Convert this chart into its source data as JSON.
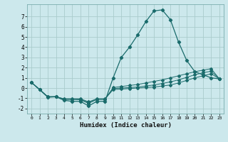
{
  "title": "",
  "xlabel": "Humidex (Indice chaleur)",
  "bg_color": "#cce8ec",
  "grid_color": "#aacccc",
  "line_color": "#1a6b6b",
  "xlim": [
    -0.5,
    23.5
  ],
  "ylim": [
    -2.5,
    8.2
  ],
  "x_ticks": [
    0,
    1,
    2,
    3,
    4,
    5,
    6,
    7,
    8,
    9,
    10,
    11,
    12,
    13,
    14,
    15,
    16,
    17,
    18,
    19,
    20,
    21,
    22,
    23
  ],
  "y_ticks": [
    -2,
    -1,
    0,
    1,
    2,
    3,
    4,
    5,
    6,
    7
  ],
  "line1_x": [
    0,
    1,
    2,
    3,
    4,
    5,
    6,
    7,
    8,
    9,
    10,
    11,
    12,
    13,
    14,
    15,
    16,
    17,
    18,
    19,
    20,
    21,
    22,
    23
  ],
  "line1_y": [
    0.55,
    -0.15,
    -0.9,
    -0.85,
    -1.2,
    -1.3,
    -1.3,
    -1.75,
    -1.3,
    -1.3,
    1.0,
    3.0,
    4.0,
    5.2,
    6.5,
    7.55,
    7.65,
    6.7,
    4.5,
    2.7,
    1.6,
    1.3,
    1.0,
    0.9
  ],
  "line2_x": [
    0,
    1,
    2,
    3,
    4,
    5,
    6,
    7,
    8,
    9,
    10,
    11,
    12,
    13,
    14,
    15,
    16,
    17,
    18,
    19,
    20,
    21,
    22,
    23
  ],
  "line2_y": [
    0.55,
    -0.15,
    -0.85,
    -0.85,
    -1.1,
    -1.1,
    -1.15,
    -1.5,
    -1.1,
    -1.1,
    0.05,
    0.15,
    0.25,
    0.35,
    0.5,
    0.65,
    0.8,
    1.0,
    1.2,
    1.4,
    1.6,
    1.75,
    1.9,
    0.9
  ],
  "line3_x": [
    0,
    1,
    2,
    3,
    4,
    5,
    6,
    7,
    8,
    9,
    10,
    11,
    12,
    13,
    14,
    15,
    16,
    17,
    18,
    19,
    20,
    21,
    22,
    23
  ],
  "line3_y": [
    0.55,
    -0.15,
    -0.85,
    -0.85,
    -1.1,
    -1.1,
    -1.1,
    -1.45,
    -1.1,
    -1.1,
    -0.05,
    0.0,
    0.05,
    0.1,
    0.2,
    0.3,
    0.45,
    0.6,
    0.8,
    1.05,
    1.3,
    1.5,
    1.65,
    0.9
  ],
  "line4_x": [
    0,
    1,
    2,
    3,
    4,
    5,
    6,
    7,
    8,
    9,
    10,
    11,
    12,
    13,
    14,
    15,
    16,
    17,
    18,
    19,
    20,
    21,
    22,
    23
  ],
  "line4_y": [
    0.55,
    -0.15,
    -0.85,
    -0.85,
    -1.05,
    -1.05,
    -1.05,
    -1.35,
    -1.05,
    -1.05,
    -0.15,
    -0.1,
    -0.05,
    0.0,
    0.05,
    0.1,
    0.2,
    0.3,
    0.5,
    0.75,
    1.0,
    1.2,
    1.4,
    0.9
  ]
}
